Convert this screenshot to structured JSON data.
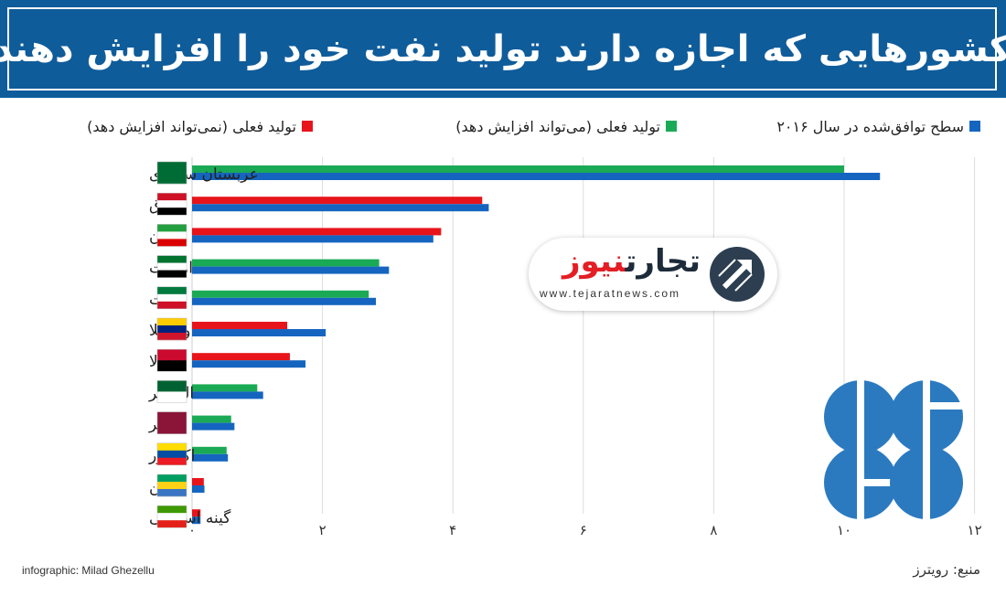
{
  "header": {
    "title": "کشورهایی که اجازه دارند تولید نفت خود را افزایش دهند"
  },
  "legend": {
    "blue": "سطح توافق‌شده در سال ۲۰۱۶",
    "green": "تولید فعلی (می‌تواند افزایش دهد)",
    "red": "تولید فعلی (نمی‌تواند افزایش دهد)"
  },
  "colors": {
    "blue": "#1565c0",
    "green": "#1aaa55",
    "red": "#e8141b",
    "header": "#0f5c9a"
  },
  "chart_data": {
    "type": "bar",
    "orientation": "horizontal",
    "categories": [
      "عربستان سعودی",
      "عراق",
      "ایران",
      "امارات",
      "کویت",
      "ونزوئلا",
      "آنگولا",
      "الجزایر",
      "قطر",
      "اکوادور",
      "گابن",
      "گینه استوایی"
    ],
    "series": [
      {
        "name": "تولید فعلی",
        "color_key": "current",
        "values": [
          10.0,
          4.45,
          3.82,
          2.87,
          2.71,
          1.46,
          1.5,
          1.0,
          0.6,
          0.53,
          0.18,
          0.13
        ],
        "can_increase": [
          true,
          false,
          false,
          true,
          true,
          false,
          false,
          true,
          true,
          true,
          false,
          false
        ]
      },
      {
        "name": "سطح توافق‌شده در سال ۲۰۱۶",
        "color_key": "blue",
        "values": [
          10.55,
          4.55,
          3.7,
          3.02,
          2.82,
          2.05,
          1.74,
          1.09,
          0.65,
          0.55,
          0.19,
          0.13
        ]
      }
    ],
    "xlim": [
      0,
      12
    ],
    "xticks": [
      0,
      2,
      4,
      6,
      8,
      10,
      12
    ],
    "xtick_labels": [
      "۰",
      "۲",
      "۴",
      "۶",
      "۸",
      "۱۰",
      "۱۲"
    ],
    "grid": true,
    "legend_position": "top"
  },
  "flags": [
    "saudi-arabia-flag",
    "iraq-flag",
    "iran-flag",
    "uae-flag",
    "kuwait-flag",
    "venezuela-flag",
    "angola-flag",
    "algeria-flag",
    "qatar-flag",
    "ecuador-flag",
    "gabon-flag",
    "equatorial-guinea-flag"
  ],
  "watermark": {
    "name_part1": "تجارت",
    "name_part2": "نیوز",
    "url": "www.tejaratnews.com"
  },
  "footer": {
    "credit": "infographic: Milad Ghezellu",
    "source": "منبع: رویترز"
  }
}
